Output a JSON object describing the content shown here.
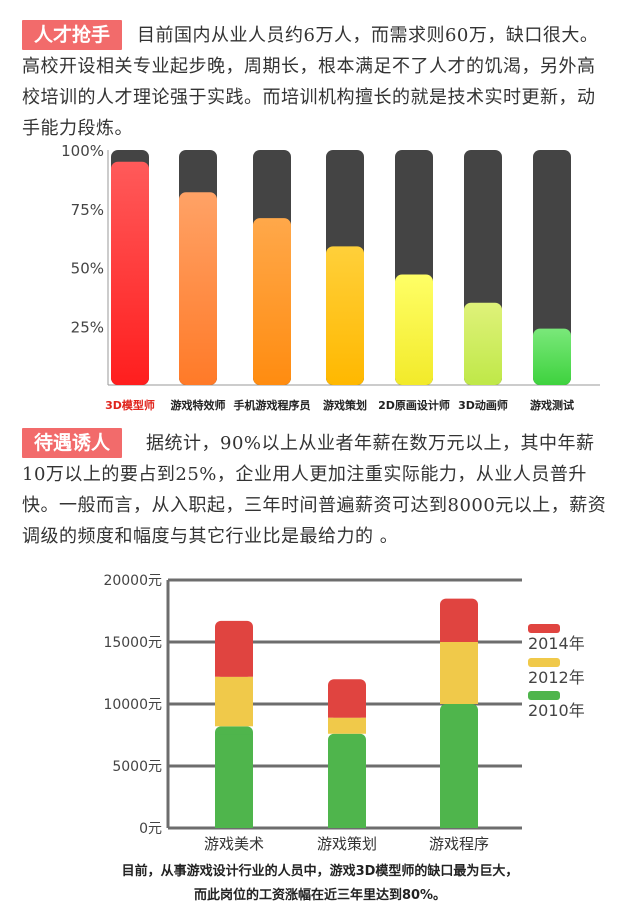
{
  "section1": {
    "tag": "人才抢手",
    "text": "目前国内从业人员约6万人，而需求则60万，缺口很大。高校开设相关专业起步晚，周期长，根本满足不了人才的饥渴，另外高校培训的人才理论强于实践。而培训机构擅长的就是技术实时更新，动手能力段炼。"
  },
  "section2": {
    "tag": "待遇诱人",
    "text": "据统计，90%以上从业者年薪在数万元以上，其中年薪10万以上的要占到25%，企业用人更加注重实际能力，从业人员普升快。一般而言，从入职起，三年时间普遍薪资可达到8000元以上，薪资调级的频度和幅度与其它行业比是最给力的 。"
  },
  "footer": {
    "line1": "目前，从事游戏设计行业的人员中，游戏3D模型师的缺口最为巨大，",
    "line2": "而此岗位的工资涨幅在近三年里达到80%。"
  },
  "chart_data": [
    {
      "type": "bar",
      "categories": [
        "3D模型师",
        "游戏特效师",
        "手机游戏程序员",
        "游戏策划",
        "2D原画设计师",
        "3D动画师",
        "游戏测试"
      ],
      "values": [
        95,
        82,
        71,
        59,
        47,
        35,
        24
      ],
      "ylim": [
        0,
        100
      ],
      "ytick_labels": [
        "100%",
        "75%",
        "50%",
        "25%"
      ],
      "yticks": [
        100,
        75,
        50,
        25
      ],
      "highlight_category": "3D模型师",
      "highlight_color": "#e0241c",
      "track_color": "#444444",
      "bar_colors": [
        [
          "#ff5a5a",
          "#ff1e1e"
        ],
        [
          "#ffa266",
          "#ff7a28"
        ],
        [
          "#ffa84a",
          "#ff8c10"
        ],
        [
          "#ffd03a",
          "#ffb800"
        ],
        [
          "#ffff66",
          "#f2ea2a"
        ],
        [
          "#dff27a",
          "#bfe848"
        ],
        [
          "#7ae87a",
          "#3ed23e"
        ]
      ]
    },
    {
      "type": "bar",
      "stacked": true,
      "categories": [
        "游戏美术",
        "游戏策划",
        "游戏程序"
      ],
      "series": [
        {
          "name": "2010年",
          "color": "#4fb54c",
          "values": [
            8200,
            7600,
            10000
          ]
        },
        {
          "name": "2012年",
          "color": "#f0c94a",
          "values": [
            4000,
            1300,
            5000
          ]
        },
        {
          "name": "2014年",
          "color": "#e04440",
          "values": [
            4500,
            3100,
            3500
          ]
        }
      ],
      "ylim": [
        0,
        20000
      ],
      "ytick_labels": [
        "20000元",
        "15000元",
        "10000元",
        "5000元",
        "0元"
      ],
      "yticks": [
        20000,
        15000,
        10000,
        5000,
        0
      ],
      "legend_placement": "right",
      "grid": true
    }
  ]
}
